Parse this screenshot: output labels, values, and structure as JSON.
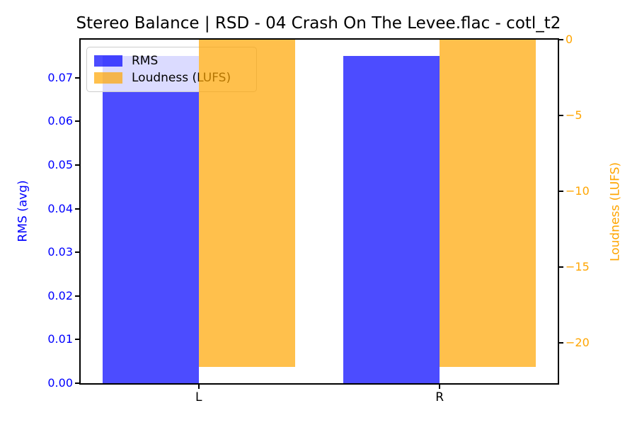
{
  "title": "Stereo Balance | RSD - 04 Crash On The Levee.flac - cotl_t2",
  "chart_data": {
    "type": "bar",
    "categories": [
      "L",
      "R"
    ],
    "series": [
      {
        "name": "RMS",
        "axis": "left",
        "color": "#0000ff",
        "opacity": 0.7,
        "values": [
          0.075,
          0.075
        ]
      },
      {
        "name": "Loudness (LUFS)",
        "axis": "right",
        "color": "#ffa500",
        "opacity": 0.7,
        "values": [
          -21.6,
          -21.6
        ]
      }
    ],
    "bar_width": 0.4,
    "bar_offsets": [
      -0.2,
      0.2
    ],
    "xlim": [
      -0.49,
      1.49
    ],
    "left_axis": {
      "label": "RMS (avg)",
      "color": "#0000ff",
      "ylim": [
        0,
        0.07875
      ],
      "ticks": [
        0,
        0.01,
        0.02,
        0.03,
        0.04,
        0.05,
        0.06,
        0.07
      ],
      "tick_labels": [
        "0.00",
        "0.01",
        "0.02",
        "0.03",
        "0.04",
        "0.05",
        "0.06",
        "0.07"
      ]
    },
    "right_axis": {
      "label": "Loudness (LUFS)",
      "color": "#ffa500",
      "ylim": [
        -22.68,
        0
      ],
      "ticks": [
        0,
        -5,
        -10,
        -15,
        -20
      ],
      "tick_labels": [
        "0",
        "−5",
        "−10",
        "−15",
        "−20"
      ]
    },
    "legend": {
      "position": "upper left"
    },
    "grid": false
  }
}
